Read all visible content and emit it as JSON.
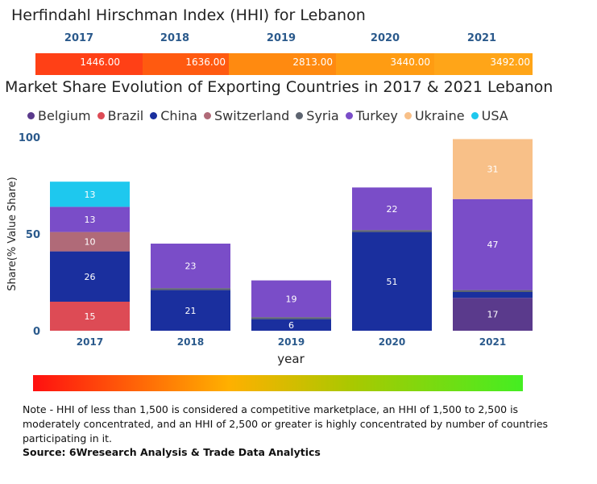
{
  "hhi": {
    "title": "Herfindahl Hirschman Index (HHI) for Lebanon",
    "years": [
      "2017",
      "2018",
      "2019",
      "2020",
      "2021"
    ],
    "values": [
      "1446.00",
      "1636.00",
      "2813.00",
      "3440.00",
      "3492.00"
    ],
    "colors": [
      "#ff4016",
      "#ff5a10",
      "#ff8a10",
      "#ff9c12",
      "#ffa518"
    ]
  },
  "chart_data": {
    "type": "bar",
    "stacked": true,
    "title": "Market Share Evolution of Exporting Countries in 2017 & 2021 Lebanon",
    "xlabel": "year",
    "ylabel": "Share(% Value Share)",
    "ylim": [
      0,
      100
    ],
    "yticks": [
      "0",
      "50",
      "100"
    ],
    "categories": [
      "2017",
      "2018",
      "2019",
      "2020",
      "2021"
    ],
    "series": [
      {
        "name": "Belgium",
        "color": "#5a3a8c",
        "values": [
          0,
          0,
          0,
          0,
          17
        ]
      },
      {
        "name": "Brazil",
        "color": "#dd4b55",
        "values": [
          15,
          0,
          0,
          0,
          0
        ]
      },
      {
        "name": "China",
        "color": "#1a2f9e",
        "values": [
          26,
          21,
          6,
          51,
          3
        ]
      },
      {
        "name": "Switzerland",
        "color": "#b06a78",
        "values": [
          10,
          0,
          0,
          0,
          0
        ]
      },
      {
        "name": "Syria",
        "color": "#5d6470",
        "values": [
          0,
          1,
          1,
          1,
          1
        ]
      },
      {
        "name": "Turkey",
        "color": "#7a4dc8",
        "values": [
          13,
          23,
          19,
          22,
          47
        ]
      },
      {
        "name": "Ukraine",
        "color": "#f8c088",
        "values": [
          0,
          0,
          0,
          0,
          31
        ]
      },
      {
        "name": "USA",
        "color": "#1ec8ee",
        "values": [
          13,
          0,
          0,
          0,
          0
        ]
      }
    ],
    "labels": [
      {
        "cat": 0,
        "series": "Brazil",
        "text": "15"
      },
      {
        "cat": 0,
        "series": "China",
        "text": "26"
      },
      {
        "cat": 0,
        "series": "Switzerland",
        "text": "10"
      },
      {
        "cat": 0,
        "series": "Turkey",
        "text": "13"
      },
      {
        "cat": 0,
        "series": "USA",
        "text": "13"
      },
      {
        "cat": 1,
        "series": "China",
        "text": "21"
      },
      {
        "cat": 1,
        "series": "Turkey",
        "text": "23"
      },
      {
        "cat": 2,
        "series": "China",
        "text": "6"
      },
      {
        "cat": 2,
        "series": "Turkey",
        "text": "19"
      },
      {
        "cat": 3,
        "series": "China",
        "text": "51"
      },
      {
        "cat": 3,
        "series": "Turkey",
        "text": "22"
      },
      {
        "cat": 4,
        "series": "Belgium",
        "text": "17"
      },
      {
        "cat": 4,
        "series": "Turkey",
        "text": "47"
      },
      {
        "cat": 4,
        "series": "Ukraine",
        "text": "31"
      }
    ]
  },
  "note": "Note - HHI of less than 1,500 is considered a competitive marketplace, an HHI of 1,500 to 2,500 is moderately concentrated, and an HHI of 2,500 or greater is highly concentrated by number of countries participating in it.",
  "source": "Source: 6Wresearch Analysis & Trade Data Analytics"
}
